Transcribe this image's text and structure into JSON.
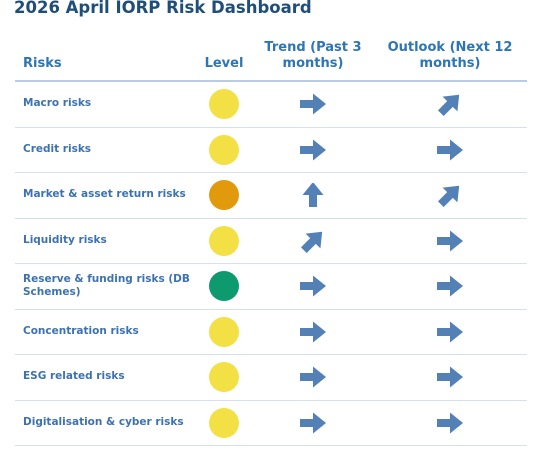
{
  "header": {
    "title": "2026 April IORP Risk Dashboard"
  },
  "table": {
    "columns": [
      "Risks",
      "Level",
      "Trend (Past 3 months)",
      "Outlook (Next 12 months)"
    ],
    "rows": [
      [
        "Macro risks"
      ],
      [
        "Credit risks"
      ],
      [
        "Market & asset return risks"
      ],
      [
        "Liquidity risks"
      ],
      [
        "Reserve & funding risks (DB Schemes)"
      ],
      [
        "Concentration risks"
      ],
      [
        "ESG related risks"
      ],
      [
        "Digitalisation & cyber risks"
      ]
    ]
  }
}
